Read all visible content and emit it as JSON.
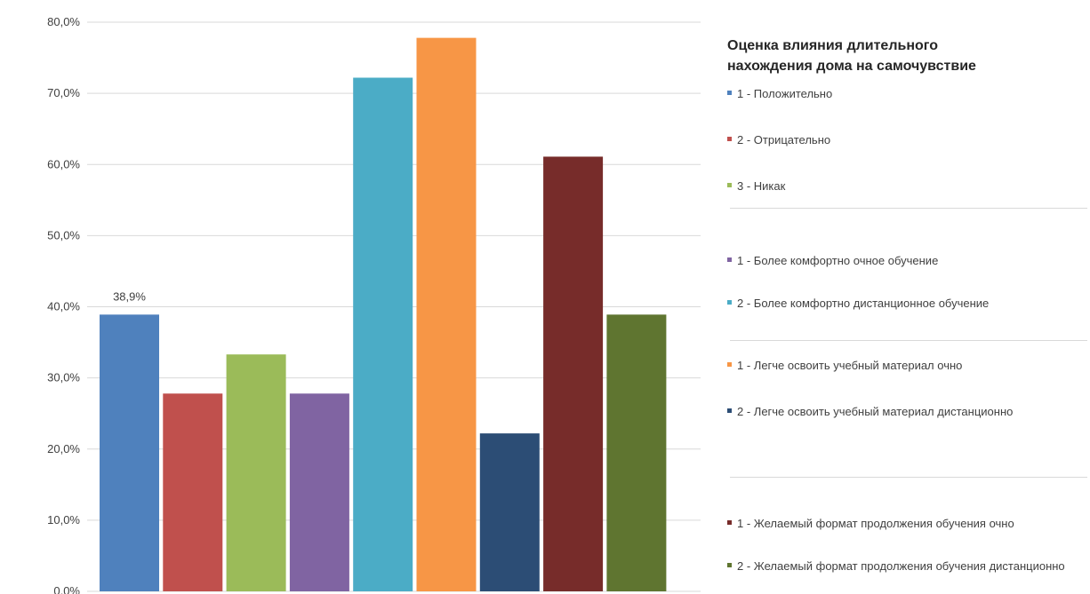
{
  "chart_data": {
    "type": "bar",
    "yticks": [
      "0,0%",
      "10,0%",
      "20,0%",
      "30,0%",
      "40,0%",
      "50,0%",
      "60,0%",
      "70,0%",
      "80,0%"
    ],
    "ylim": [
      0,
      80
    ],
    "grid": true,
    "legend_position": "right",
    "legend_title": "Оценка влияния длительного\nнахождения дома на самочувствие",
    "series": [
      {
        "name": "1 - Положительно",
        "value": 38.9,
        "color": "#4f81bd",
        "data_label": "38,9%"
      },
      {
        "name": "2 - Отрицательно",
        "value": 27.8,
        "color": "#c0504d"
      },
      {
        "name": "3 - Никак",
        "value": 33.3,
        "color": "#9bbb59"
      },
      {
        "name": "1 - Более комфортно очное обучение",
        "value": 27.8,
        "color": "#8064a2"
      },
      {
        "name": "2 - Более комфортно дистанционное обучение",
        "value": 72.2,
        "color": "#4bacc6"
      },
      {
        "name": "1 - Легче освоить учебный материал очно",
        "value": 77.8,
        "color": "#f79646"
      },
      {
        "name": "2 - Легче освоить учебный материал дистанционно",
        "value": 22.2,
        "color": "#2c4d75"
      },
      {
        "name": "1 - Желаемый формат продолжения обучения очно",
        "value": 61.1,
        "color": "#772c2a"
      },
      {
        "name": "2 - Желаемый формат продолжения обучения дистанционно",
        "value": 38.9,
        "color": "#5f7530"
      }
    ]
  }
}
